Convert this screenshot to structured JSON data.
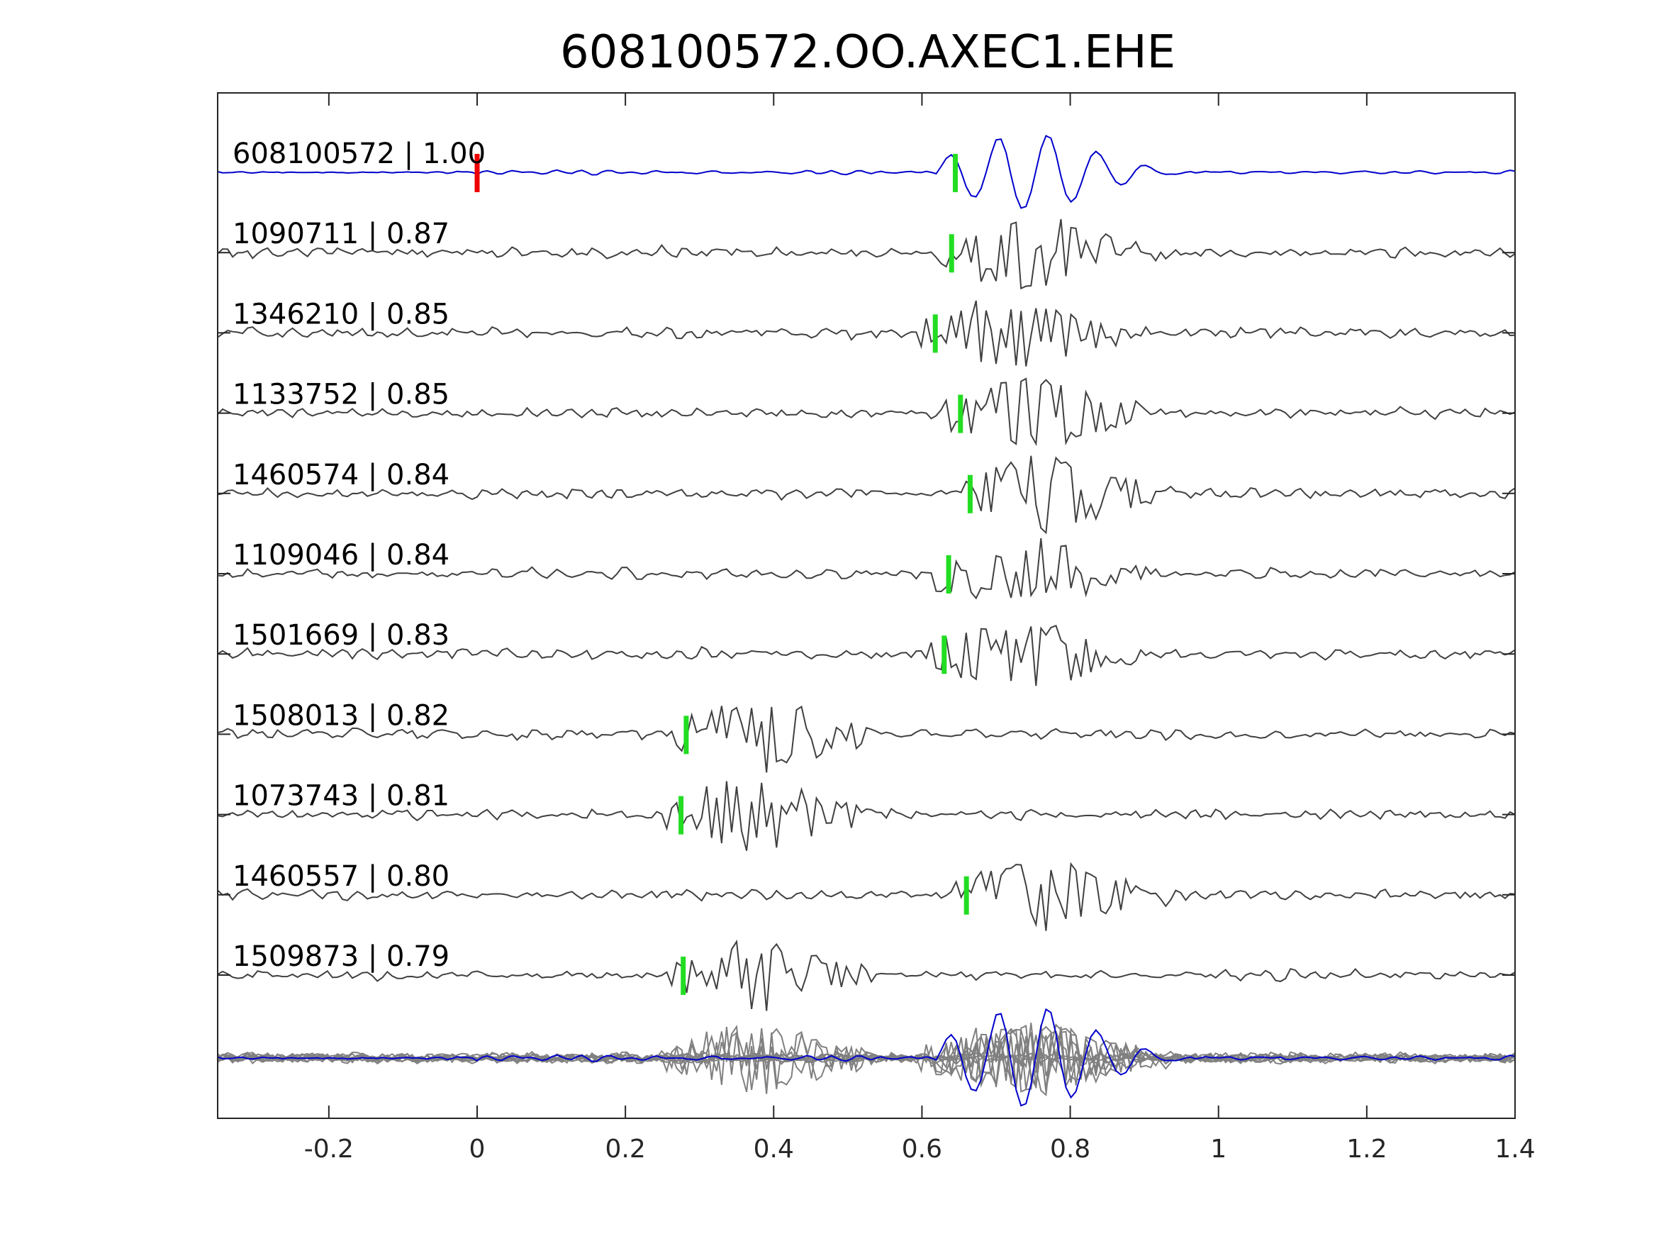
{
  "chart_data": {
    "type": "line",
    "title": "608100572.OO.AXEC1.EHE",
    "xlabel": "",
    "ylabel": "",
    "xlim": [
      -0.35,
      1.4
    ],
    "xticks": [
      {
        "value": -0.2,
        "label": "-0.2"
      },
      {
        "value": 0,
        "label": "0"
      },
      {
        "value": 0.2,
        "label": "0.2"
      },
      {
        "value": 0.4,
        "label": "0.4"
      },
      {
        "value": 0.6,
        "label": "0.6"
      },
      {
        "value": 0.8,
        "label": "0.8"
      },
      {
        "value": 1,
        "label": "1"
      },
      {
        "value": 1.2,
        "label": "1.2"
      },
      {
        "value": 1.4,
        "label": "1.4"
      }
    ],
    "grid": false,
    "colors": {
      "template": "#0000cc",
      "match": "#404040",
      "stack": "#808080",
      "origin_pick": "#ee0000",
      "pick": "#22dd22"
    },
    "origin_pick_time": 0.0,
    "traces": [
      {
        "id": "608100572",
        "cc": "1.00",
        "label": "608100572 | 1.00",
        "pick": 0.645,
        "template": true
      },
      {
        "id": "1090711",
        "cc": "0.87",
        "label": "1090711 | 0.87",
        "pick": 0.64
      },
      {
        "id": "1346210",
        "cc": "0.85",
        "label": "1346210 | 0.85",
        "pick": 0.618
      },
      {
        "id": "1133752",
        "cc": "0.85",
        "label": "1133752 | 0.85",
        "pick": 0.652
      },
      {
        "id": "1460574",
        "cc": "0.84",
        "label": "1460574 | 0.84",
        "pick": 0.665
      },
      {
        "id": "1109046",
        "cc": "0.84",
        "label": "1109046 | 0.84",
        "pick": 0.636
      },
      {
        "id": "1501669",
        "cc": "0.83",
        "label": "1501669 | 0.83",
        "pick": 0.63
      },
      {
        "id": "1508013",
        "cc": "0.82",
        "label": "1508013 | 0.82",
        "pick": 0.282
      },
      {
        "id": "1073743",
        "cc": "0.81",
        "label": "1073743 | 0.81",
        "pick": 0.275
      },
      {
        "id": "1460557",
        "cc": "0.80",
        "label": "1460557 | 0.80",
        "pick": 0.66
      },
      {
        "id": "1509873",
        "cc": "0.79",
        "label": "1509873 | 0.79",
        "pick": 0.278
      }
    ]
  }
}
